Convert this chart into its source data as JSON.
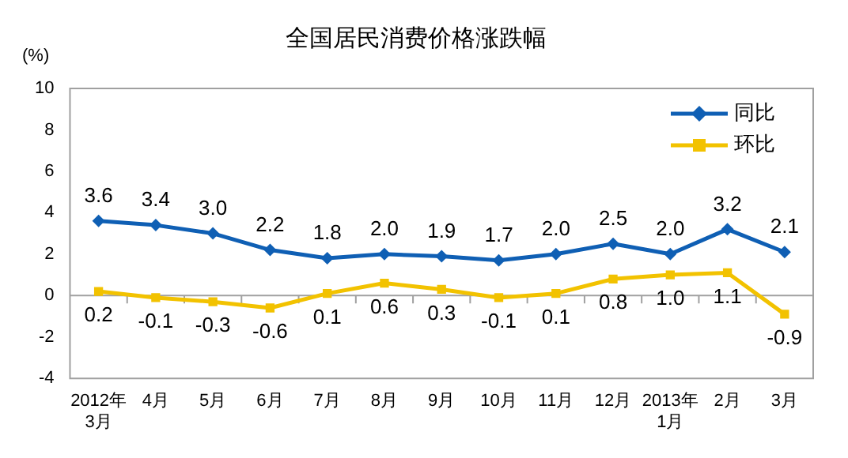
{
  "chart_data": {
    "type": "line",
    "title": "全国居民消费价格涨跌幅",
    "ylabel": "(%)",
    "categories": [
      "2012年\n3月",
      "4月",
      "5月",
      "6月",
      "7月",
      "8月",
      "9月",
      "10月",
      "11月",
      "12月",
      "2013年\n1月",
      "2月",
      "3月"
    ],
    "series": [
      {
        "name": "同比",
        "color": "#0f5fb4",
        "marker": "diamond",
        "values": [
          3.6,
          3.4,
          3.0,
          2.2,
          1.8,
          2.0,
          1.9,
          1.7,
          2.0,
          2.5,
          2.0,
          3.2,
          2.1
        ],
        "value_labels": [
          "3.6",
          "3.4",
          "3.0",
          "2.2",
          "1.8",
          "2.0",
          "1.9",
          "1.7",
          "2.0",
          "2.5",
          "2.0",
          "3.2",
          "2.1"
        ]
      },
      {
        "name": "环比",
        "color": "#f2c200",
        "marker": "square",
        "values": [
          0.2,
          -0.1,
          -0.3,
          -0.6,
          0.1,
          0.6,
          0.3,
          -0.1,
          0.1,
          0.8,
          1.0,
          1.1,
          -0.9
        ],
        "value_labels": [
          "0.2",
          "-0.1",
          "-0.3",
          "-0.6",
          "0.1",
          "0.6",
          "0.3",
          "-0.1",
          "0.1",
          "0.8",
          "1.0",
          "1.1",
          "-0.9"
        ]
      }
    ],
    "ylim": [
      -4,
      10
    ],
    "yticks": [
      -4,
      -2,
      0,
      2,
      4,
      6,
      8,
      10
    ],
    "ref_lines": [
      {
        "axis": "y",
        "value": 0,
        "color": "#a0a0a0"
      }
    ],
    "legend": "top right"
  }
}
